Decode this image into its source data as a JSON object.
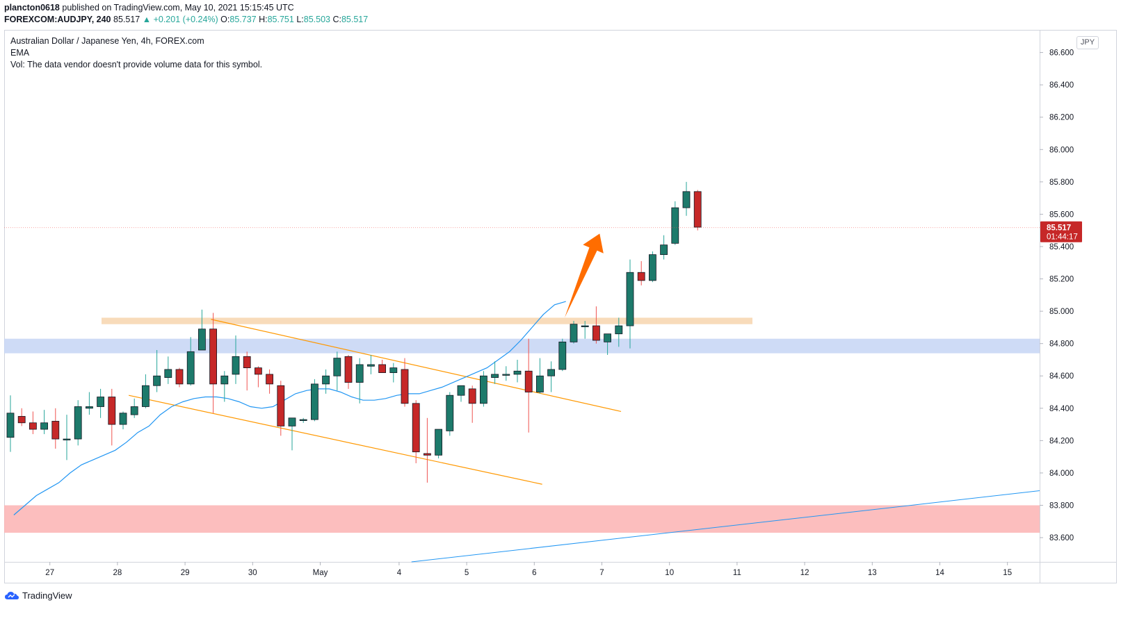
{
  "header": {
    "publisher": "plancton0618",
    "published_text": "published on TradingView.com, May 10, 2021 15:15:45 UTC",
    "symbol_line": "FOREXCOM:AUDJPY, 240",
    "last_price": "85.517",
    "change_text": "▲ +0.201 (+0.24%)",
    "o_label": "O:",
    "o_value": "85.737",
    "h_label": "H:",
    "h_value": "85.751",
    "l_label": "L:",
    "l_value": "85.503",
    "c_label": "C:",
    "c_value": "85.517"
  },
  "legend": {
    "title": "Australian Dollar / Japanese Yen, 4h, FOREX.com",
    "ema": "EMA",
    "vol": "Vol: The data vendor doesn't provide volume data for this symbol."
  },
  "price_axis": {
    "currency": "JPY",
    "last_price_label": "85.517",
    "countdown_label": "01:44:17"
  },
  "footer": {
    "brand": "TradingView"
  },
  "colors": {
    "up": "#26a69a",
    "down": "#ef5350",
    "up_body": "#1d7a6b",
    "down_body": "#c62828",
    "ema": "#2196f3",
    "channel": "#ff9800",
    "resistance_zone": "#f6d2a9",
    "support_zone": "#c5d5f5",
    "lower_zone": "#fbb3b3",
    "arrow": "#ff6d00",
    "price_badge": "#c62828"
  },
  "chart_data": {
    "type": "candlestick",
    "title": "Australian Dollar / Japanese Yen, 4h, FOREX.com",
    "ylim": [
      83.45,
      86.74
    ],
    "y_ticks": [
      "86.600",
      "86.400",
      "86.200",
      "86.000",
      "85.800",
      "85.600",
      "85.400",
      "85.200",
      "85.000",
      "84.800",
      "84.600",
      "84.400",
      "84.200",
      "84.000",
      "83.800",
      "83.600"
    ],
    "x_ticks": [
      "27",
      "28",
      "29",
      "30",
      "May",
      "4",
      "5",
      "6",
      "7",
      "10",
      "11",
      "12",
      "13",
      "14",
      "15"
    ],
    "candles": [
      {
        "o": 84.22,
        "h": 84.48,
        "l": 84.13,
        "c": 84.37
      },
      {
        "o": 84.35,
        "h": 84.4,
        "l": 84.29,
        "c": 84.31
      },
      {
        "o": 84.31,
        "h": 84.38,
        "l": 84.24,
        "c": 84.27
      },
      {
        "o": 84.27,
        "h": 84.39,
        "l": 84.24,
        "c": 84.31
      },
      {
        "o": 84.32,
        "h": 84.4,
        "l": 84.15,
        "c": 84.21
      },
      {
        "o": 84.21,
        "h": 84.36,
        "l": 84.08,
        "c": 84.21
      },
      {
        "o": 84.21,
        "h": 84.45,
        "l": 84.17,
        "c": 84.41
      },
      {
        "o": 84.4,
        "h": 84.5,
        "l": 84.36,
        "c": 84.41
      },
      {
        "o": 84.41,
        "h": 84.52,
        "l": 84.34,
        "c": 84.47
      },
      {
        "o": 84.47,
        "h": 84.52,
        "l": 84.17,
        "c": 84.3
      },
      {
        "o": 84.3,
        "h": 84.38,
        "l": 84.27,
        "c": 84.37
      },
      {
        "o": 84.36,
        "h": 84.46,
        "l": 84.34,
        "c": 84.41
      },
      {
        "o": 84.41,
        "h": 84.61,
        "l": 84.4,
        "c": 84.54
      },
      {
        "o": 84.54,
        "h": 84.76,
        "l": 84.5,
        "c": 84.6
      },
      {
        "o": 84.59,
        "h": 84.72,
        "l": 84.55,
        "c": 84.64
      },
      {
        "o": 84.64,
        "h": 84.65,
        "l": 84.53,
        "c": 84.55
      },
      {
        "o": 84.55,
        "h": 84.84,
        "l": 84.54,
        "c": 84.75
      },
      {
        "o": 84.76,
        "h": 85.01,
        "l": 84.76,
        "c": 84.89
      },
      {
        "o": 84.89,
        "h": 84.99,
        "l": 84.37,
        "c": 84.55
      },
      {
        "o": 84.55,
        "h": 84.63,
        "l": 84.44,
        "c": 84.6
      },
      {
        "o": 84.61,
        "h": 84.85,
        "l": 84.55,
        "c": 84.72
      },
      {
        "o": 84.72,
        "h": 84.75,
        "l": 84.51,
        "c": 84.65
      },
      {
        "o": 84.65,
        "h": 84.66,
        "l": 84.53,
        "c": 84.61
      },
      {
        "o": 84.61,
        "h": 84.64,
        "l": 84.49,
        "c": 84.55
      },
      {
        "o": 84.54,
        "h": 84.57,
        "l": 84.23,
        "c": 84.29
      },
      {
        "o": 84.29,
        "h": 84.34,
        "l": 84.14,
        "c": 84.34
      },
      {
        "o": 84.33,
        "h": 84.34,
        "l": 84.31,
        "c": 84.33
      },
      {
        "o": 84.33,
        "h": 84.58,
        "l": 84.32,
        "c": 84.55
      },
      {
        "o": 84.55,
        "h": 84.64,
        "l": 84.49,
        "c": 84.6
      },
      {
        "o": 84.6,
        "h": 84.75,
        "l": 84.51,
        "c": 84.71
      },
      {
        "o": 84.72,
        "h": 84.73,
        "l": 84.52,
        "c": 84.56
      },
      {
        "o": 84.56,
        "h": 84.71,
        "l": 84.43,
        "c": 84.67
      },
      {
        "o": 84.66,
        "h": 84.73,
        "l": 84.61,
        "c": 84.67
      },
      {
        "o": 84.67,
        "h": 84.7,
        "l": 84.62,
        "c": 84.62
      },
      {
        "o": 84.62,
        "h": 84.68,
        "l": 84.56,
        "c": 84.65
      },
      {
        "o": 84.64,
        "h": 84.71,
        "l": 84.41,
        "c": 84.43
      },
      {
        "o": 84.43,
        "h": 84.45,
        "l": 84.06,
        "c": 84.13
      },
      {
        "o": 84.12,
        "h": 84.34,
        "l": 83.94,
        "c": 84.11
      },
      {
        "o": 84.11,
        "h": 84.27,
        "l": 84.09,
        "c": 84.27
      },
      {
        "o": 84.26,
        "h": 84.5,
        "l": 84.23,
        "c": 84.48
      },
      {
        "o": 84.48,
        "h": 84.54,
        "l": 84.44,
        "c": 84.54
      },
      {
        "o": 84.52,
        "h": 84.54,
        "l": 84.31,
        "c": 84.43
      },
      {
        "o": 84.43,
        "h": 84.63,
        "l": 84.41,
        "c": 84.6
      },
      {
        "o": 84.59,
        "h": 84.69,
        "l": 84.55,
        "c": 84.61
      },
      {
        "o": 84.61,
        "h": 84.66,
        "l": 84.57,
        "c": 84.61
      },
      {
        "o": 84.61,
        "h": 84.7,
        "l": 84.56,
        "c": 84.63
      },
      {
        "o": 84.63,
        "h": 84.83,
        "l": 84.25,
        "c": 84.5
      },
      {
        "o": 84.5,
        "h": 84.71,
        "l": 84.49,
        "c": 84.6
      },
      {
        "o": 84.6,
        "h": 84.69,
        "l": 84.5,
        "c": 84.64
      },
      {
        "o": 84.64,
        "h": 84.83,
        "l": 84.63,
        "c": 84.81
      },
      {
        "o": 84.81,
        "h": 84.94,
        "l": 84.8,
        "c": 84.92
      },
      {
        "o": 84.91,
        "h": 84.94,
        "l": 84.83,
        "c": 84.91
      },
      {
        "o": 84.91,
        "h": 85.03,
        "l": 84.8,
        "c": 84.82
      },
      {
        "o": 84.81,
        "h": 84.86,
        "l": 84.73,
        "c": 84.86
      },
      {
        "o": 84.86,
        "h": 84.96,
        "l": 84.78,
        "c": 84.91
      },
      {
        "o": 84.91,
        "h": 85.32,
        "l": 84.77,
        "c": 85.24
      },
      {
        "o": 85.24,
        "h": 85.31,
        "l": 85.16,
        "c": 85.19
      },
      {
        "o": 85.19,
        "h": 85.37,
        "l": 85.18,
        "c": 85.35
      },
      {
        "o": 85.35,
        "h": 85.47,
        "l": 85.32,
        "c": 85.41
      },
      {
        "o": 85.42,
        "h": 85.68,
        "l": 85.41,
        "c": 85.64
      },
      {
        "o": 85.64,
        "h": 85.8,
        "l": 85.59,
        "c": 85.74
      },
      {
        "o": 85.74,
        "h": 85.75,
        "l": 85.5,
        "c": 85.52
      }
    ],
    "ema": [
      83.74,
      83.8,
      83.86,
      83.9,
      83.94,
      84.0,
      84.05,
      84.08,
      84.11,
      84.14,
      84.19,
      84.25,
      84.29,
      84.36,
      84.41,
      84.44,
      84.46,
      84.47,
      84.47,
      84.46,
      84.44,
      84.41,
      84.4,
      84.41,
      84.45,
      84.49,
      84.51,
      84.52,
      84.52,
      84.5,
      84.47,
      84.45,
      84.45,
      84.46,
      84.48,
      84.49,
      84.49,
      84.51,
      84.53,
      84.56,
      84.59,
      84.62,
      84.65,
      84.7,
      84.75,
      84.82,
      84.9,
      84.98,
      85.04,
      85.06
    ],
    "zones": [
      {
        "name": "resistance",
        "y0": 84.92,
        "y1": 84.96
      },
      {
        "name": "support",
        "y0": 84.74,
        "y1": 84.83
      },
      {
        "name": "lower",
        "y0": 83.63,
        "y1": 83.8
      }
    ]
  }
}
